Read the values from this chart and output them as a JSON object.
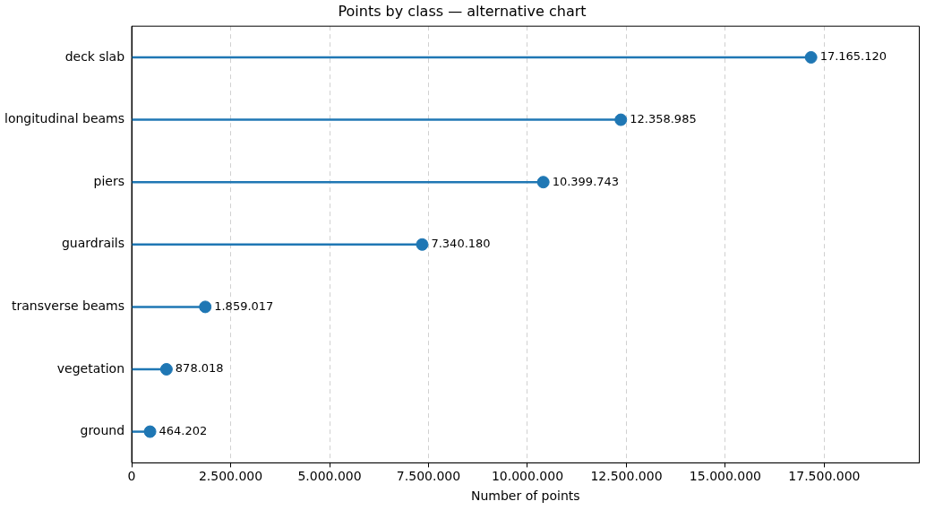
{
  "chart_data": {
    "type": "lollipop",
    "orientation": "horizontal",
    "title": "Points by class — alternative chart",
    "xlabel": "Number of points",
    "categories": [
      "deck slab",
      "longitudinal beams",
      "piers",
      "guardrails",
      "transverse beams",
      "vegetation",
      "ground"
    ],
    "values": [
      17165120,
      12358985,
      10399743,
      7340180,
      1859017,
      878018,
      464202
    ],
    "value_labels": [
      "17.165.120",
      "12.358.985",
      "10.399.743",
      "7.340.180",
      "1.859.017",
      "878.018",
      "464.202"
    ],
    "color": "#1f77b4",
    "marker": "circle",
    "grid": "x",
    "legend": false,
    "xlim": [
      0,
      19900000
    ],
    "xticks": [
      {
        "value": 0,
        "label": "0"
      },
      {
        "value": 2500000,
        "label": "2.500.000"
      },
      {
        "value": 5000000,
        "label": "5.000.000"
      },
      {
        "value": 7500000,
        "label": "7.500.000"
      },
      {
        "value": 10000000,
        "label": "10.000.000"
      },
      {
        "value": 12500000,
        "label": "12.500.000"
      },
      {
        "value": 15000000,
        "label": "15.000.000"
      },
      {
        "value": 17500000,
        "label": "17.500.000"
      }
    ]
  }
}
